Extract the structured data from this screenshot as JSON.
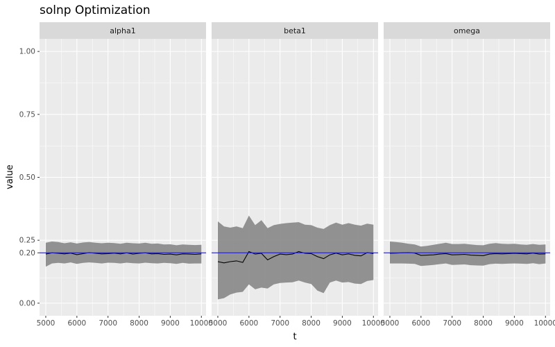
{
  "chart_data": {
    "type": "line",
    "title": "solnp Optimization",
    "xlabel": "t",
    "ylabel": "value",
    "xlim": [
      4800,
      10150
    ],
    "ylim": [
      -0.05,
      1.05
    ],
    "x_ticks": [
      5000,
      6000,
      7000,
      8000,
      9000,
      10000
    ],
    "x_tick_labels": [
      "5000",
      "6000",
      "7000",
      "8000",
      "9000",
      "10000"
    ],
    "y_ticks": [
      0.0,
      0.2,
      0.25,
      0.5,
      0.75,
      1.0
    ],
    "y_tick_labels": [
      "0.00",
      "0.20",
      "0.25",
      "0.50",
      "0.75",
      "1.00"
    ],
    "reference_line": {
      "y": 0.2,
      "color": "#1f1fbf"
    },
    "colors": {
      "panel_bg": "#ebebeb",
      "grid": "#ffffff",
      "strip_bg": "#d9d9d9",
      "band": "#8c8c8c",
      "line": "#000000"
    },
    "x": [
      5000,
      5200,
      5400,
      5600,
      5800,
      6000,
      6200,
      6400,
      6600,
      6800,
      7000,
      7200,
      7400,
      7600,
      7800,
      8000,
      8200,
      8400,
      8600,
      8800,
      9000,
      9200,
      9400,
      9600,
      9800,
      10000
    ],
    "panels": [
      {
        "name": "alpha1",
        "mean": [
          0.195,
          0.2,
          0.198,
          0.196,
          0.199,
          0.193,
          0.197,
          0.201,
          0.198,
          0.196,
          0.197,
          0.199,
          0.196,
          0.2,
          0.195,
          0.198,
          0.2,
          0.196,
          0.197,
          0.194,
          0.195,
          0.192,
          0.196,
          0.195,
          0.194,
          0.196
        ],
        "lower": [
          0.145,
          0.158,
          0.16,
          0.158,
          0.162,
          0.156,
          0.16,
          0.162,
          0.16,
          0.158,
          0.161,
          0.16,
          0.158,
          0.161,
          0.159,
          0.158,
          0.161,
          0.159,
          0.158,
          0.16,
          0.159,
          0.156,
          0.16,
          0.157,
          0.158,
          0.158
        ],
        "upper": [
          0.24,
          0.245,
          0.243,
          0.238,
          0.242,
          0.237,
          0.241,
          0.243,
          0.24,
          0.238,
          0.24,
          0.239,
          0.236,
          0.24,
          0.238,
          0.237,
          0.24,
          0.236,
          0.237,
          0.233,
          0.234,
          0.23,
          0.233,
          0.232,
          0.231,
          0.232
        ]
      },
      {
        "name": "beta1",
        "mean": [
          0.165,
          0.16,
          0.165,
          0.168,
          0.162,
          0.205,
          0.195,
          0.198,
          0.172,
          0.185,
          0.195,
          0.193,
          0.195,
          0.205,
          0.198,
          0.197,
          0.185,
          0.177,
          0.192,
          0.199,
          0.192,
          0.196,
          0.19,
          0.188,
          0.201,
          0.197
        ],
        "lower": [
          0.015,
          0.02,
          0.035,
          0.042,
          0.045,
          0.075,
          0.055,
          0.062,
          0.058,
          0.075,
          0.08,
          0.082,
          0.083,
          0.09,
          0.082,
          0.076,
          0.05,
          0.04,
          0.082,
          0.09,
          0.082,
          0.084,
          0.078,
          0.076,
          0.088,
          0.092
        ],
        "upper": [
          0.325,
          0.305,
          0.3,
          0.305,
          0.298,
          0.348,
          0.31,
          0.33,
          0.298,
          0.31,
          0.315,
          0.318,
          0.32,
          0.322,
          0.312,
          0.31,
          0.3,
          0.295,
          0.31,
          0.32,
          0.312,
          0.318,
          0.312,
          0.308,
          0.316,
          0.312
        ]
      },
      {
        "name": "omega",
        "mean": [
          0.198,
          0.199,
          0.2,
          0.201,
          0.199,
          0.19,
          0.191,
          0.192,
          0.195,
          0.197,
          0.192,
          0.193,
          0.194,
          0.191,
          0.19,
          0.189,
          0.195,
          0.197,
          0.196,
          0.197,
          0.198,
          0.197,
          0.196,
          0.199,
          0.195,
          0.196
        ],
        "lower": [
          0.158,
          0.158,
          0.158,
          0.157,
          0.156,
          0.148,
          0.15,
          0.152,
          0.155,
          0.158,
          0.152,
          0.153,
          0.154,
          0.151,
          0.15,
          0.149,
          0.155,
          0.157,
          0.156,
          0.157,
          0.158,
          0.157,
          0.156,
          0.159,
          0.155,
          0.158
        ],
        "upper": [
          0.245,
          0.243,
          0.24,
          0.236,
          0.233,
          0.225,
          0.228,
          0.232,
          0.236,
          0.24,
          0.235,
          0.235,
          0.236,
          0.233,
          0.231,
          0.23,
          0.236,
          0.239,
          0.236,
          0.235,
          0.236,
          0.233,
          0.232,
          0.235,
          0.232,
          0.233
        ]
      }
    ]
  }
}
